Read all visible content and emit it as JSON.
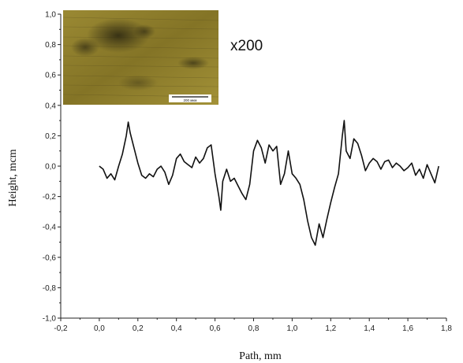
{
  "chart_data": {
    "type": "line",
    "title": "",
    "xlabel": "Path, mm",
    "ylabel": "Height, mcm",
    "xlim": [
      -0.2,
      1.8
    ],
    "ylim": [
      -1.0,
      1.0
    ],
    "grid": false,
    "x_ticks": [
      -0.2,
      0.0,
      0.2,
      0.4,
      0.6,
      0.8,
      1.0,
      1.2,
      1.4,
      1.6,
      1.8
    ],
    "y_ticks": [
      -1.0,
      -0.8,
      -0.6,
      -0.4,
      -0.2,
      0.0,
      0.2,
      0.4,
      0.6,
      0.8,
      1.0
    ],
    "x_tick_labels": [
      "-0,2",
      "0,0",
      "0,2",
      "0,4",
      "0,6",
      "0,8",
      "1,0",
      "1,2",
      "1,4",
      "1,6",
      "1,8"
    ],
    "y_tick_labels": [
      "-1,0",
      "-0,8",
      "-0,6",
      "-0,4",
      "-0,2",
      "0,0",
      "0,2",
      "0,4",
      "0,6",
      "0,8",
      "1,0"
    ],
    "series": [
      {
        "color": "#111111",
        "x": [
          0.0,
          0.02,
          0.04,
          0.06,
          0.08,
          0.1,
          0.12,
          0.14,
          0.15,
          0.16,
          0.18,
          0.2,
          0.22,
          0.24,
          0.26,
          0.28,
          0.3,
          0.32,
          0.34,
          0.36,
          0.38,
          0.4,
          0.42,
          0.44,
          0.46,
          0.48,
          0.5,
          0.52,
          0.54,
          0.56,
          0.58,
          0.6,
          0.62,
          0.63,
          0.64,
          0.66,
          0.68,
          0.7,
          0.72,
          0.74,
          0.76,
          0.78,
          0.8,
          0.82,
          0.84,
          0.86,
          0.88,
          0.9,
          0.92,
          0.94,
          0.96,
          0.98,
          1.0,
          1.02,
          1.04,
          1.06,
          1.08,
          1.1,
          1.12,
          1.14,
          1.16,
          1.18,
          1.2,
          1.22,
          1.24,
          1.26,
          1.27,
          1.28,
          1.3,
          1.32,
          1.34,
          1.36,
          1.38,
          1.4,
          1.42,
          1.44,
          1.46,
          1.48,
          1.5,
          1.52,
          1.54,
          1.56,
          1.58,
          1.6,
          1.62,
          1.64,
          1.66,
          1.68,
          1.7,
          1.72,
          1.74,
          1.76
        ],
        "y": [
          0.0,
          -0.02,
          -0.08,
          -0.05,
          -0.09,
          0.0,
          0.08,
          0.2,
          0.29,
          0.22,
          0.12,
          0.02,
          -0.06,
          -0.08,
          -0.05,
          -0.07,
          -0.02,
          0.0,
          -0.04,
          -0.12,
          -0.06,
          0.05,
          0.08,
          0.03,
          0.01,
          -0.01,
          0.06,
          0.02,
          0.05,
          0.12,
          0.14,
          -0.05,
          -0.2,
          -0.29,
          -0.1,
          -0.02,
          -0.1,
          -0.08,
          -0.13,
          -0.18,
          -0.22,
          -0.12,
          0.1,
          0.17,
          0.12,
          0.02,
          0.14,
          0.1,
          0.13,
          -0.12,
          -0.05,
          0.1,
          -0.05,
          -0.08,
          -0.12,
          -0.22,
          -0.36,
          -0.47,
          -0.52,
          -0.38,
          -0.47,
          -0.35,
          -0.24,
          -0.14,
          -0.05,
          0.2,
          0.3,
          0.1,
          0.05,
          0.18,
          0.15,
          0.07,
          -0.03,
          0.02,
          0.05,
          0.03,
          -0.02,
          0.03,
          0.04,
          -0.01,
          0.02,
          0.0,
          -0.03,
          -0.01,
          0.02,
          -0.06,
          -0.02,
          -0.08,
          0.01,
          -0.05,
          -0.11,
          0.0
        ]
      }
    ]
  },
  "inset": {
    "magnification": "x200",
    "scale_bar_label": "200 мкм",
    "colors": {
      "base": "#8a7a2c",
      "dark": "#3a3315",
      "light": "#b7a648"
    }
  }
}
